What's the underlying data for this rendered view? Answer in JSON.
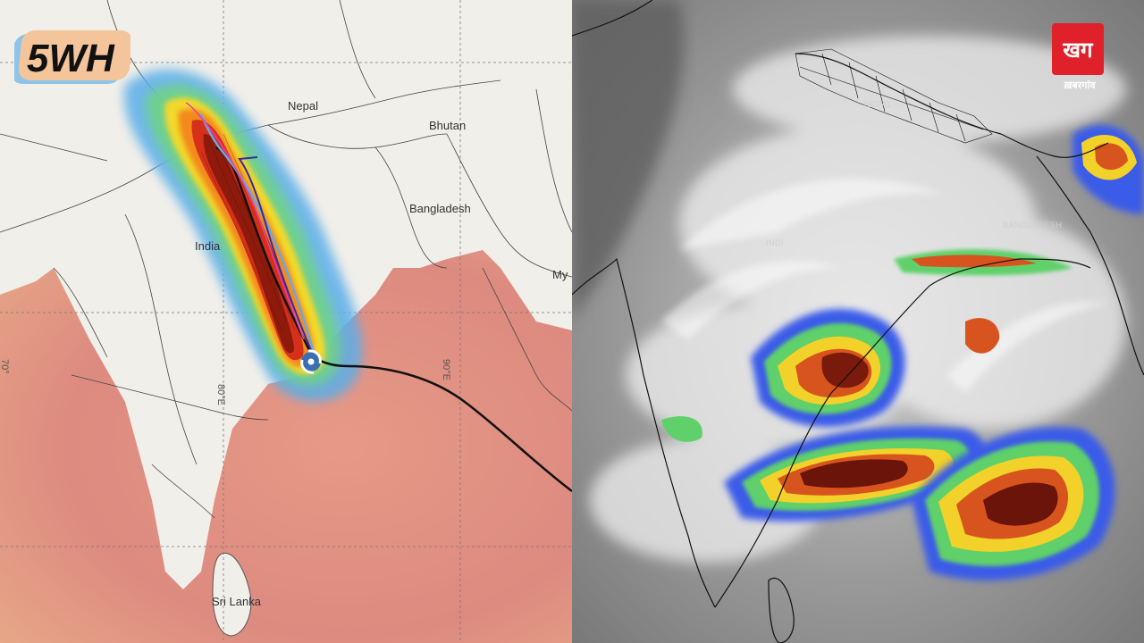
{
  "left_map": {
    "labels": {
      "nepal": "Nepal",
      "bhutan": "Bhutan",
      "bangladesh": "Bangladesh",
      "india": "India",
      "sri_lanka": "Sri Lanka",
      "myanmar_partial": "My"
    },
    "coordinates": {
      "lon_80": "80°E",
      "lon_90": "90°E",
      "lon_70_partial": "70°"
    },
    "colors": {
      "land": "#f1efea",
      "ocean": "#d98d80",
      "track_center": "#7a0e08",
      "track_mid": "#f4a21c",
      "track_outer": "#4aa3e6"
    },
    "cyclone_icon": "cyclone-icon"
  },
  "right_map": {
    "labels": {
      "nepal": "NEPAL",
      "india": "INDI",
      "bangladesh": "BANGLADESH"
    }
  },
  "logos": {
    "left_logo_text": "5WH",
    "right_logo_glyphs": "खग",
    "right_logo_caption": "ख़बरगांव"
  }
}
